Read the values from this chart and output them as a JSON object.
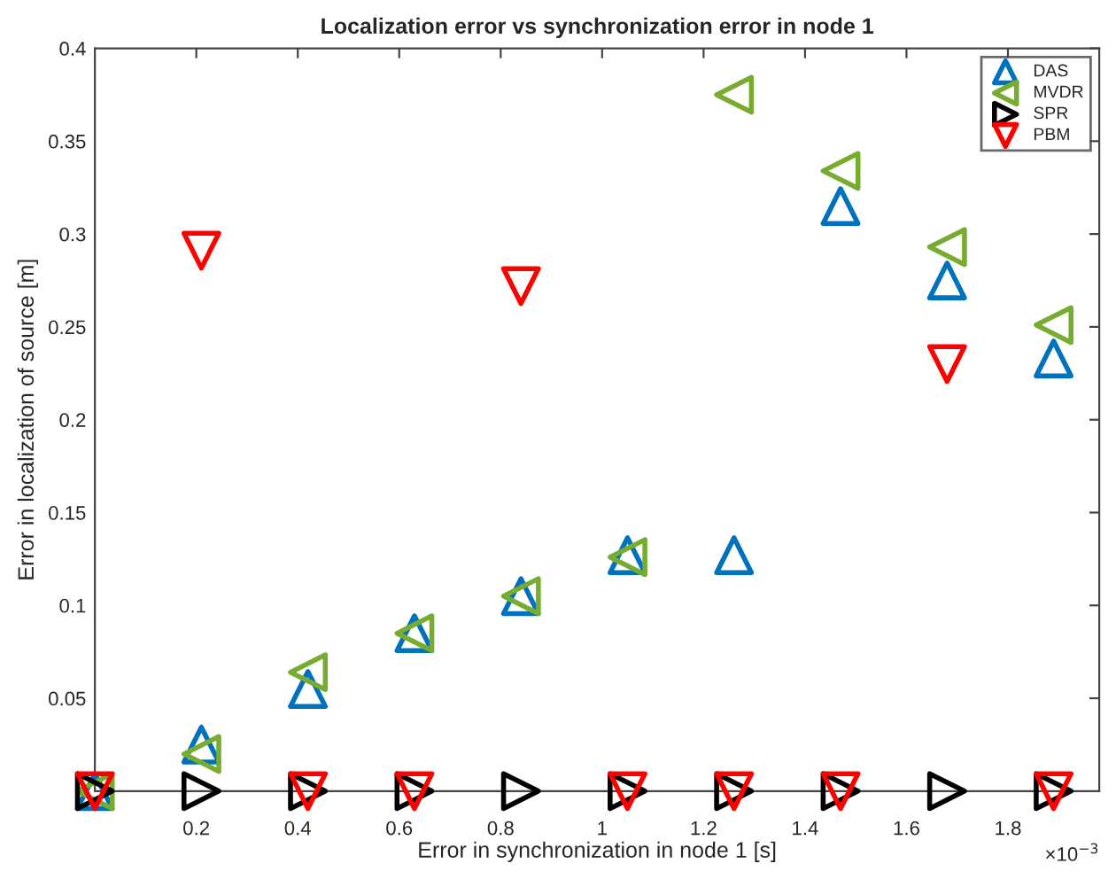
{
  "chart_data": {
    "type": "scatter",
    "title": "Localization error vs synchronization error in node 1",
    "xlabel": "Error in synchronization in node 1 [s]",
    "ylabel": "Error in localization of source [m]",
    "x": [
      0,
      0.21,
      0.42,
      0.63,
      0.84,
      1.05,
      1.26,
      1.47,
      1.68,
      1.89
    ],
    "series": [
      {
        "name": "DAS",
        "color": "#0072bd",
        "marker": "triangle",
        "values": [
          0,
          0.025,
          0.055,
          0.085,
          0.105,
          0.127,
          0.127,
          0.315,
          0.275,
          0.233
        ]
      },
      {
        "name": "MVDR",
        "color": "#77ac30",
        "marker": "triangle_left",
        "values": [
          0,
          0.02,
          0.064,
          0.085,
          0.105,
          0.126,
          0.375,
          0.334,
          0.293,
          0.251
        ]
      },
      {
        "name": "SPR",
        "color": "#000000",
        "marker": "triangle_right",
        "values": [
          0,
          0,
          0,
          0,
          0,
          0,
          0,
          0,
          0,
          0
        ]
      },
      {
        "name": "PBM",
        "color": "#ff0000",
        "marker": "triangle_down",
        "values": [
          0,
          0.291,
          0,
          0,
          0.272,
          0,
          0,
          0,
          0.23,
          0
        ]
      }
    ],
    "xlim": [
      0,
      1.98
    ],
    "xticks": [
      0.2,
      0.4,
      0.6,
      0.8,
      1,
      1.2,
      1.4,
      1.6,
      1.8
    ],
    "ylim": [
      0,
      0.4
    ],
    "yticks": [
      0.05,
      0.1,
      0.15,
      0.2,
      0.25,
      0.3,
      0.35,
      0.4
    ],
    "annotations": [
      "×10$^{−3}$"
    ],
    "grid": false,
    "legend": "top right"
  }
}
